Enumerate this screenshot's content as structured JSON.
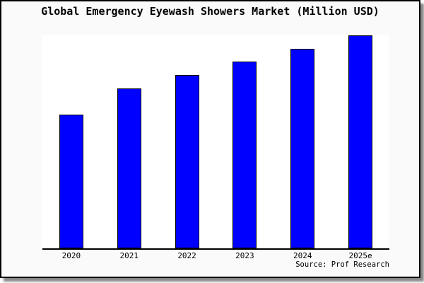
{
  "chart_data": {
    "type": "bar",
    "title": "Global Emergency Eyewash Showers Market (Million USD)",
    "categories": [
      "2020",
      "2021",
      "2022",
      "2023",
      "2024",
      "2025e"
    ],
    "values": [
      62.8,
      75.1,
      81.5,
      87.7,
      93.7,
      100
    ],
    "xlabel": "",
    "ylabel": "",
    "ylim": [
      0,
      100
    ],
    "grid": false,
    "legend": "none",
    "bar_color": "#0000ff",
    "bar_edge_color": "#000000",
    "source": "Source: Prof Research"
  },
  "colors": {
    "figure_background": "#fafafa",
    "plot_background": "#ffffff",
    "axis_line": "#000000",
    "card_border": "#000000",
    "text": "#000000",
    "shadow": "#737373"
  }
}
